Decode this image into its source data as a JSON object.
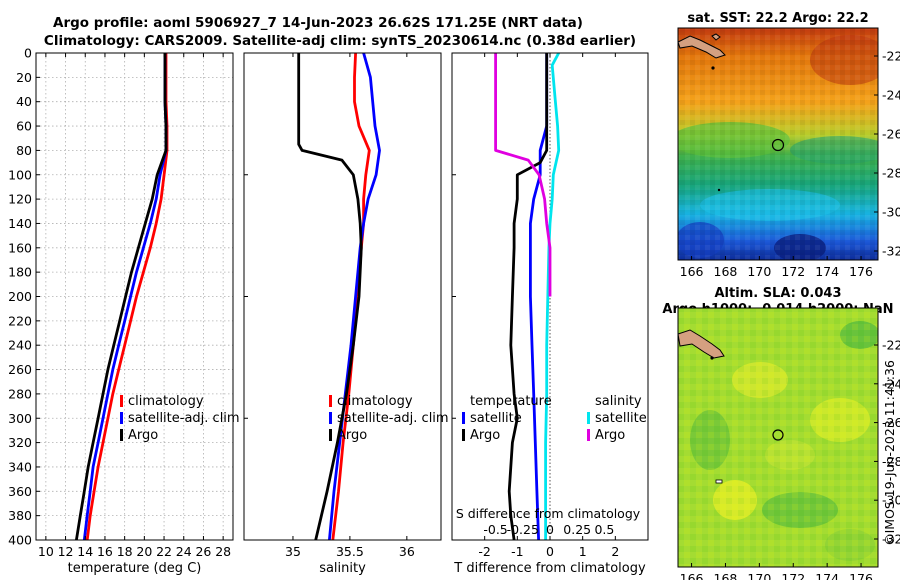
{
  "figure": {
    "title_line1": "Argo profile: aoml 5906927_7 14-Jun-2023 26.62S 171.25E (NRT data)",
    "title_line2": "Climatology: CARS2009. Satellite-adj clim: synTS_20230614.nc (0.38d earlier)",
    "watermark": "©IMOS 19-Jun-2023 11:41:36"
  },
  "colors": {
    "climatology": "#ff0000",
    "satellite": "#0000ff",
    "argo": "#000000",
    "sal_satellite": "#00e5ee",
    "sal_argo": "#e000e0",
    "grid": "#b0b0b0",
    "land": "#d4a080"
  },
  "chart_data": [
    {
      "type": "line",
      "name": "temperature-profile",
      "xlabel": "temperature (deg C)",
      "ylabel": "depth",
      "xlim": [
        9,
        29
      ],
      "ylim": [
        400,
        0
      ],
      "xticks": [
        10,
        12,
        14,
        16,
        18,
        20,
        22,
        24,
        26,
        28
      ],
      "yticks": [
        0,
        20,
        40,
        60,
        80,
        100,
        120,
        140,
        160,
        180,
        200,
        220,
        240,
        260,
        280,
        300,
        320,
        340,
        360,
        380,
        400
      ],
      "grid": true,
      "legend": [
        "climatology",
        "satellite-adj. clim",
        "Argo"
      ],
      "series": [
        {
          "name": "climatology",
          "color": "#ff0000",
          "points": [
            [
              22.2,
              0
            ],
            [
              22.2,
              40
            ],
            [
              22.3,
              60
            ],
            [
              22.3,
              80
            ],
            [
              22.0,
              100
            ],
            [
              21.7,
              120
            ],
            [
              21.2,
              140
            ],
            [
              20.6,
              160
            ],
            [
              19.9,
              180
            ],
            [
              19.2,
              200
            ],
            [
              18.6,
              220
            ],
            [
              18.0,
              240
            ],
            [
              17.4,
              260
            ],
            [
              16.8,
              280
            ],
            [
              16.3,
              300
            ],
            [
              15.8,
              320
            ],
            [
              15.3,
              340
            ],
            [
              14.9,
              360
            ],
            [
              14.5,
              380
            ],
            [
              14.2,
              400
            ]
          ]
        },
        {
          "name": "satellite-adj. clim",
          "color": "#0000ff",
          "points": [
            [
              22.1,
              0
            ],
            [
              22.1,
              40
            ],
            [
              22.2,
              60
            ],
            [
              22.2,
              80
            ],
            [
              21.6,
              100
            ],
            [
              21.2,
              120
            ],
            [
              20.6,
              140
            ],
            [
              19.9,
              160
            ],
            [
              19.2,
              180
            ],
            [
              18.6,
              200
            ],
            [
              18.0,
              220
            ],
            [
              17.4,
              240
            ],
            [
              16.8,
              260
            ],
            [
              16.3,
              280
            ],
            [
              15.8,
              300
            ],
            [
              15.3,
              320
            ],
            [
              14.8,
              340
            ],
            [
              14.5,
              360
            ],
            [
              14.2,
              380
            ],
            [
              13.9,
              400
            ]
          ]
        },
        {
          "name": "Argo",
          "color": "#000000",
          "points": [
            [
              22.1,
              0
            ],
            [
              22.1,
              40
            ],
            [
              22.2,
              60
            ],
            [
              22.2,
              80
            ],
            [
              21.3,
              100
            ],
            [
              20.8,
              120
            ],
            [
              20.1,
              140
            ],
            [
              19.4,
              160
            ],
            [
              18.7,
              180
            ],
            [
              18.1,
              200
            ],
            [
              17.5,
              220
            ],
            [
              16.9,
              240
            ],
            [
              16.3,
              260
            ],
            [
              15.8,
              280
            ],
            [
              15.3,
              300
            ],
            [
              14.8,
              320
            ],
            [
              14.3,
              340
            ],
            [
              13.9,
              360
            ],
            [
              13.5,
              380
            ],
            [
              13.1,
              400
            ]
          ]
        }
      ]
    },
    {
      "type": "line",
      "name": "salinity-profile",
      "xlabel": "salinity",
      "ylabel": "depth",
      "xlim": [
        34.57,
        36.3
      ],
      "ylim": [
        400,
        0
      ],
      "xticks": [
        35,
        35.5,
        36
      ],
      "xticklabels": [
        "35",
        "35.5",
        "36"
      ],
      "grid": false,
      "legend": [
        "climatology",
        "satellite-adj. clim",
        "Argo"
      ],
      "series": [
        {
          "name": "climatology",
          "color": "#ff0000",
          "points": [
            [
              35.55,
              0
            ],
            [
              35.54,
              20
            ],
            [
              35.54,
              40
            ],
            [
              35.58,
              60
            ],
            [
              35.67,
              80
            ],
            [
              35.64,
              100
            ],
            [
              35.62,
              120
            ],
            [
              35.62,
              140
            ],
            [
              35.6,
              160
            ],
            [
              35.57,
              200
            ],
            [
              35.53,
              240
            ],
            [
              35.49,
              280
            ],
            [
              35.44,
              320
            ],
            [
              35.4,
              360
            ],
            [
              35.35,
              400
            ]
          ]
        },
        {
          "name": "satellite-adj. clim",
          "color": "#0000ff",
          "points": [
            [
              35.62,
              0
            ],
            [
              35.68,
              20
            ],
            [
              35.7,
              40
            ],
            [
              35.72,
              60
            ],
            [
              35.76,
              80
            ],
            [
              35.73,
              100
            ],
            [
              35.66,
              120
            ],
            [
              35.62,
              140
            ],
            [
              35.59,
              160
            ],
            [
              35.55,
              200
            ],
            [
              35.51,
              240
            ],
            [
              35.46,
              280
            ],
            [
              35.41,
              320
            ],
            [
              35.36,
              360
            ],
            [
              35.32,
              400
            ]
          ]
        },
        {
          "name": "Argo",
          "color": "#000000",
          "points": [
            [
              35.05,
              0
            ],
            [
              35.05,
              40
            ],
            [
              35.05,
              75
            ],
            [
              35.08,
              80
            ],
            [
              35.43,
              88
            ],
            [
              35.53,
              100
            ],
            [
              35.57,
              120
            ],
            [
              35.59,
              140
            ],
            [
              35.6,
              160
            ],
            [
              35.58,
              200
            ],
            [
              35.53,
              240
            ],
            [
              35.47,
              280
            ],
            [
              35.39,
              320
            ],
            [
              35.3,
              360
            ],
            [
              35.2,
              400
            ]
          ]
        }
      ]
    },
    {
      "type": "line",
      "name": "difference-profile",
      "xlabel": "T difference from climatology",
      "xlabel_top": "S difference from climatology",
      "xlim": [
        -3,
        3
      ],
      "ylim": [
        400,
        0
      ],
      "xticks": [
        -2,
        -1,
        0,
        1,
        2
      ],
      "xticklabels": [
        "-2",
        "-1",
        "0",
        "1",
        "2"
      ],
      "s_xlim": [
        -0.9,
        0.9
      ],
      "s_xticks": [
        -0.5,
        -0.25,
        0,
        0.25,
        0.5
      ],
      "s_xticklabels": [
        "-0.5",
        "-0.25",
        "0",
        "0.25",
        "0.5"
      ],
      "legend_t": {
        "heading": "temperature",
        "items": [
          "satellite",
          "Argo"
        ]
      },
      "legend_s": {
        "heading": "salinity",
        "items": [
          "satellite",
          "Argo"
        ]
      },
      "series": [
        {
          "name": "temperature satellite",
          "color": "#0000ff",
          "axis": "T",
          "points": [
            [
              -0.1,
              0
            ],
            [
              -0.1,
              40
            ],
            [
              -0.1,
              60
            ],
            [
              -0.3,
              80
            ],
            [
              -0.3,
              100
            ],
            [
              -0.5,
              120
            ],
            [
              -0.6,
              140
            ],
            [
              -0.6,
              160
            ],
            [
              -0.6,
              200
            ],
            [
              -0.55,
              240
            ],
            [
              -0.5,
              280
            ],
            [
              -0.45,
              320
            ],
            [
              -0.4,
              360
            ],
            [
              -0.35,
              400
            ]
          ]
        },
        {
          "name": "temperature Argo",
          "color": "#000000",
          "axis": "T",
          "points": [
            [
              -0.1,
              0
            ],
            [
              -0.1,
              60
            ],
            [
              -0.1,
              80
            ],
            [
              -0.3,
              90
            ],
            [
              -1.0,
              100
            ],
            [
              -1.0,
              120
            ],
            [
              -1.1,
              140
            ],
            [
              -1.1,
              160
            ],
            [
              -1.15,
              200
            ],
            [
              -1.2,
              240
            ],
            [
              -1.1,
              280
            ],
            [
              -1.0,
              300
            ],
            [
              -1.15,
              320
            ],
            [
              -1.2,
              340
            ],
            [
              -1.25,
              360
            ],
            [
              -1.2,
              380
            ],
            [
              -1.1,
              400
            ]
          ]
        },
        {
          "name": "salinity satellite",
          "color": "#00e5ee",
          "axis": "S",
          "points": [
            [
              0.08,
              0
            ],
            [
              0.02,
              10
            ],
            [
              0.05,
              40
            ],
            [
              0.07,
              60
            ],
            [
              0.08,
              80
            ],
            [
              0.03,
              100
            ],
            [
              0.02,
              120
            ],
            [
              0.0,
              140
            ],
            [
              -0.01,
              160
            ],
            [
              -0.02,
              200
            ],
            [
              -0.03,
              240
            ],
            [
              -0.03,
              280
            ],
            [
              -0.04,
              320
            ],
            [
              -0.04,
              360
            ],
            [
              -0.04,
              400
            ]
          ]
        },
        {
          "name": "salinity Argo",
          "color": "#e000e0",
          "axis": "S",
          "points": [
            [
              -0.5,
              0
            ],
            [
              -0.5,
              40
            ],
            [
              -0.5,
              80
            ],
            [
              -0.2,
              88
            ],
            [
              -0.1,
              100
            ],
            [
              -0.05,
              120
            ],
            [
              -0.03,
              140
            ],
            [
              0.0,
              160
            ],
            [
              0.0,
              200
            ]
          ]
        }
      ]
    }
  ],
  "maps": {
    "lon_ticks": [
      "166",
      "168",
      "170",
      "172",
      "174",
      "176"
    ],
    "lat_ticks": [
      "-22",
      "-24",
      "-26",
      "-28",
      "-30",
      "-32"
    ],
    "sst": {
      "title": "sat. SST: 22.2 Argo: 22.2"
    },
    "sla": {
      "title1": "Altim. SLA: 0.043",
      "title2": "Argo h1000: -0.014 h2000: NaN"
    }
  }
}
